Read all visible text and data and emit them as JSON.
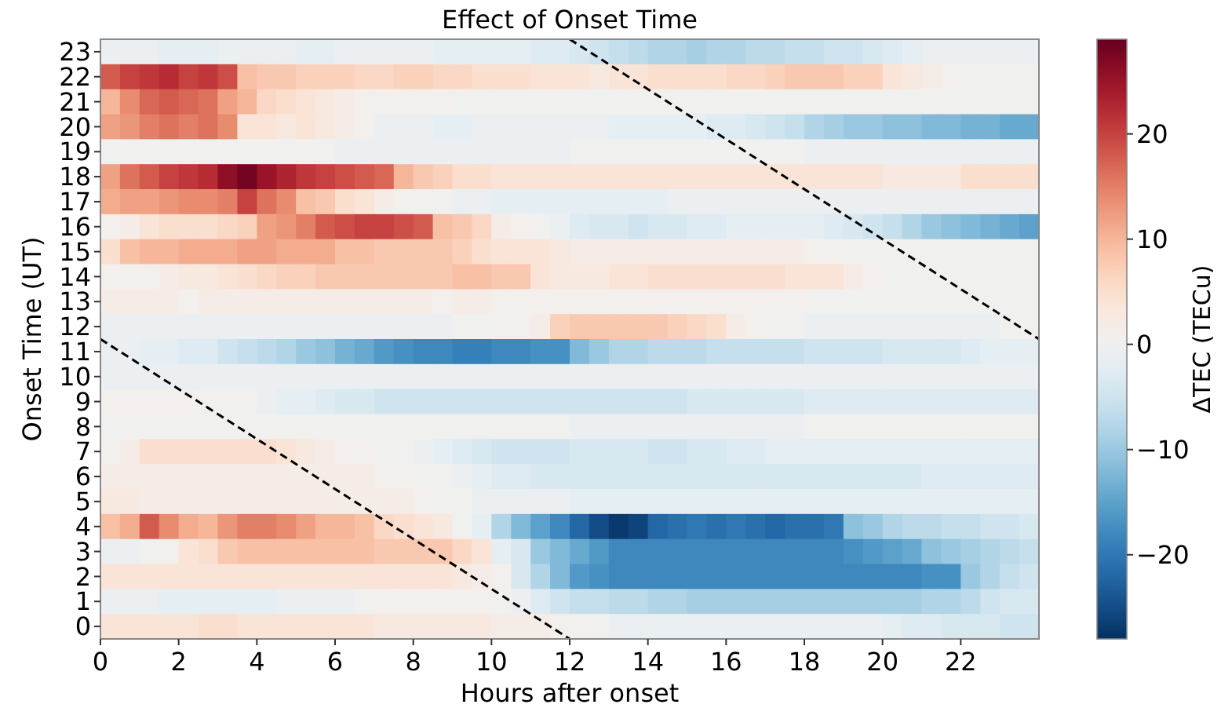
{
  "chart_data": {
    "type": "heatmap",
    "title": "Effect of Onset Time",
    "xlabel": "Hours after onset",
    "ylabel": "Onset Time (UT)",
    "clabel": "ΔTEC (TECu)",
    "xlim": [
      0,
      24
    ],
    "xticks": [
      0,
      2,
      4,
      6,
      8,
      10,
      12,
      14,
      16,
      18,
      20,
      22
    ],
    "ylim": [
      -0.5,
      23.5
    ],
    "yticks": [
      0,
      1,
      2,
      3,
      4,
      5,
      6,
      7,
      8,
      9,
      10,
      11,
      12,
      13,
      14,
      15,
      16,
      17,
      18,
      19,
      20,
      21,
      22,
      23
    ],
    "clim": [
      -28,
      29
    ],
    "cticks": [
      -20,
      -10,
      0,
      10,
      20
    ],
    "cells": [
      [
        -1,
        -1,
        -1,
        -2,
        -2,
        -2,
        -1,
        -1,
        -1,
        -1,
        -2,
        -2,
        -1,
        -1,
        -1,
        -1,
        -1,
        -2,
        -2,
        -2,
        -2,
        -2,
        -3,
        -3,
        -4,
        -5,
        -6,
        -7,
        -8,
        -8,
        -9,
        -8,
        -8,
        -7,
        -7,
        -6,
        -6,
        -5,
        -5,
        -4,
        -3,
        -2,
        -1,
        -1,
        -1,
        -1,
        -1,
        -1
      ],
      [
        18,
        20,
        21,
        22,
        20,
        21,
        19,
        9,
        8,
        8,
        7,
        7,
        7,
        6,
        6,
        7,
        7,
        6,
        6,
        5,
        5,
        5,
        4,
        4,
        4,
        3,
        4,
        4,
        5,
        5,
        5,
        5,
        6,
        6,
        7,
        8,
        8,
        8,
        7,
        7,
        4,
        3,
        2,
        1,
        0,
        0,
        0,
        0
      ],
      [
        10,
        14,
        17,
        18,
        17,
        16,
        12,
        10,
        6,
        5,
        4,
        3,
        2,
        1,
        1,
        1,
        1,
        1,
        0,
        0,
        0,
        0,
        0,
        0,
        0,
        0,
        0,
        0,
        0,
        0,
        0,
        0,
        0,
        0,
        0,
        0,
        0,
        0,
        0,
        0,
        0,
        0,
        0,
        0,
        0,
        0,
        0,
        0
      ],
      [
        12,
        13,
        15,
        16,
        15,
        16,
        14,
        4,
        4,
        3,
        4,
        3,
        2,
        1,
        -1,
        -1,
        -1,
        -2,
        -2,
        -1,
        -1,
        -1,
        -1,
        -1,
        -1,
        -1,
        -2,
        -2,
        -2,
        -2,
        -2,
        -3,
        -3,
        -4,
        -5,
        -6,
        -8,
        -9,
        -10,
        -10,
        -11,
        -11,
        -12,
        -12,
        -13,
        -13,
        -14,
        -14
      ],
      [
        0,
        0,
        0,
        0,
        0,
        0,
        0,
        0,
        0,
        0,
        0,
        0,
        -1,
        -1,
        -1,
        -1,
        -1,
        -1,
        -1,
        -1,
        -1,
        -1,
        -1,
        -1,
        0,
        0,
        0,
        0,
        0,
        0,
        0,
        0,
        0,
        0,
        0,
        0,
        -1,
        -1,
        -1,
        -1,
        -1,
        -1,
        -1,
        -1,
        -1,
        -1,
        -1,
        -1
      ],
      [
        12,
        16,
        18,
        20,
        21,
        22,
        26,
        28,
        25,
        23,
        21,
        20,
        19,
        18,
        17,
        10,
        8,
        7,
        5,
        5,
        4,
        4,
        4,
        4,
        4,
        4,
        4,
        4,
        4,
        4,
        4,
        4,
        4,
        4,
        4,
        4,
        4,
        4,
        4,
        4,
        3,
        3,
        3,
        3,
        5,
        5,
        5,
        5
      ],
      [
        11,
        12,
        12,
        13,
        14,
        14,
        15,
        20,
        16,
        14,
        9,
        8,
        5,
        4,
        2,
        1,
        1,
        0,
        -1,
        -1,
        -2,
        -2,
        -2,
        -2,
        -2,
        -2,
        -2,
        -2,
        -2,
        -1,
        -1,
        -1,
        -1,
        -1,
        -1,
        -1,
        -1,
        -1,
        -1,
        -1,
        -1,
        -1,
        -1,
        -1,
        -1,
        -1,
        -1,
        -1
      ],
      [
        1,
        2,
        4,
        5,
        5,
        5,
        6,
        7,
        12,
        13,
        15,
        18,
        19,
        20,
        20,
        19,
        18,
        9,
        8,
        6,
        2,
        1,
        0,
        -1,
        -3,
        -4,
        -4,
        -5,
        -4,
        -4,
        -3,
        -3,
        -2,
        -2,
        -2,
        -2,
        -2,
        -3,
        -4,
        -5,
        -6,
        -8,
        -10,
        -11,
        -12,
        -13,
        -14,
        -15
      ],
      [
        5,
        9,
        10,
        10,
        11,
        11,
        11,
        12,
        12,
        11,
        11,
        11,
        9,
        9,
        8,
        8,
        8,
        8,
        7,
        5,
        4,
        4,
        4,
        3,
        2,
        2,
        2,
        2,
        2,
        2,
        2,
        2,
        2,
        2,
        2,
        2,
        1,
        1,
        0,
        0,
        0,
        0,
        0,
        0,
        0,
        0,
        0,
        0
      ],
      [
        1,
        1,
        1,
        2,
        3,
        3,
        4,
        5,
        6,
        7,
        7,
        8,
        8,
        8,
        8,
        8,
        8,
        8,
        9,
        9,
        8,
        8,
        4,
        3,
        3,
        3,
        4,
        4,
        5,
        5,
        5,
        5,
        5,
        5,
        5,
        4,
        4,
        4,
        2,
        1,
        0,
        0,
        0,
        0,
        0,
        0,
        0,
        0
      ],
      [
        2,
        2,
        2,
        2,
        1,
        2,
        2,
        2,
        2,
        2,
        2,
        2,
        2,
        2,
        2,
        2,
        2,
        1,
        2,
        2,
        1,
        1,
        1,
        1,
        1,
        1,
        1,
        1,
        1,
        1,
        1,
        1,
        1,
        1,
        1,
        1,
        0,
        0,
        0,
        0,
        0,
        0,
        0,
        0,
        0,
        0,
        0,
        0
      ],
      [
        -1,
        -1,
        -1,
        -1,
        -1,
        -1,
        -1,
        -1,
        -1,
        -1,
        -1,
        -1,
        -1,
        -1,
        -1,
        -1,
        -1,
        -1,
        0,
        0,
        1,
        1,
        2,
        7,
        8,
        8,
        8,
        8,
        8,
        7,
        6,
        5,
        2,
        1,
        0,
        0,
        -1,
        -1,
        -1,
        -1,
        -1,
        -1,
        -1,
        -1,
        -1,
        -1,
        0,
        0
      ],
      [
        -1,
        -1,
        -2,
        -2,
        -3,
        -3,
        -5,
        -6,
        -7,
        -8,
        -10,
        -11,
        -13,
        -14,
        -16,
        -17,
        -18,
        -18,
        -19,
        -19,
        -18,
        -18,
        -17,
        -17,
        -12,
        -10,
        -8,
        -8,
        -7,
        -7,
        -7,
        -6,
        -6,
        -6,
        -6,
        -6,
        -5,
        -5,
        -5,
        -5,
        -4,
        -4,
        -4,
        -4,
        -3,
        -2,
        -2,
        -2
      ],
      [
        -1,
        -1,
        -1,
        -1,
        -1,
        -1,
        -1,
        -1,
        -1,
        -1,
        -1,
        -1,
        -1,
        -1,
        -1,
        -1,
        -1,
        -1,
        -1,
        -1,
        -1,
        -1,
        -1,
        -1,
        -1,
        -1,
        -1,
        -1,
        -1,
        -1,
        -1,
        -1,
        -1,
        -1,
        -1,
        -1,
        -1,
        -1,
        -1,
        -1,
        -1,
        -1,
        -1,
        -1,
        -1,
        -1,
        -1,
        -1
      ],
      [
        1,
        1,
        1,
        1,
        1,
        0,
        0,
        0,
        -1,
        -2,
        -2,
        -3,
        -4,
        -4,
        -5,
        -5,
        -5,
        -5,
        -5,
        -5,
        -5,
        -5,
        -5,
        -5,
        -5,
        -5,
        -5,
        -5,
        -5,
        -5,
        -4,
        -4,
        -4,
        -4,
        -4,
        -4,
        -3,
        -3,
        -3,
        -3,
        -3,
        -3,
        -3,
        -3,
        -3,
        -3,
        -3,
        -3
      ],
      [
        0,
        0,
        0,
        0,
        0,
        0,
        0,
        0,
        0,
        0,
        0,
        0,
        0,
        0,
        0,
        0,
        0,
        0,
        0,
        0,
        0,
        0,
        0,
        0,
        -1,
        -1,
        -1,
        -1,
        -1,
        -1,
        -1,
        -1,
        -1,
        -1,
        -1,
        -1,
        0,
        0,
        0,
        0,
        0,
        0,
        0,
        0,
        0,
        0,
        0,
        0
      ],
      [
        1,
        2,
        5,
        5,
        5,
        5,
        5,
        5,
        5,
        4,
        3,
        2,
        1,
        1,
        0,
        0,
        -1,
        -2,
        -3,
        -4,
        -5,
        -5,
        -5,
        -5,
        -4,
        -4,
        -4,
        -4,
        -5,
        -5,
        -4,
        -4,
        -3,
        -3,
        -2,
        -2,
        -2,
        -2,
        -2,
        -2,
        -2,
        -2,
        -2,
        -2,
        -2,
        -2,
        -2,
        -2
      ],
      [
        2,
        2,
        2,
        2,
        2,
        2,
        2,
        2,
        2,
        2,
        2,
        2,
        2,
        2,
        1,
        1,
        0,
        0,
        -1,
        -2,
        -3,
        -3,
        -4,
        -4,
        -4,
        -4,
        -4,
        -4,
        -4,
        -4,
        -4,
        -4,
        -4,
        -4,
        -4,
        -4,
        -4,
        -4,
        -4,
        -4,
        -4,
        -4,
        -3,
        -3,
        -3,
        -3,
        -3,
        -3
      ],
      [
        3,
        3,
        2,
        2,
        2,
        2,
        2,
        2,
        2,
        2,
        2,
        2,
        2,
        2,
        2,
        2,
        1,
        0,
        0,
        -1,
        -1,
        -1,
        -1,
        -1,
        -2,
        -2,
        -2,
        -2,
        -2,
        -2,
        -2,
        -2,
        -2,
        -2,
        -2,
        -2,
        -2,
        -2,
        -2,
        -2,
        -2,
        -2,
        -2,
        -2,
        -2,
        -2,
        -2,
        -2
      ],
      [
        9,
        11,
        18,
        14,
        11,
        10,
        13,
        15,
        15,
        14,
        12,
        10,
        10,
        9,
        6,
        5,
        4,
        3,
        0,
        -2,
        -8,
        -12,
        -15,
        -18,
        -22,
        -25,
        -27,
        -26,
        -22,
        -21,
        -20,
        -21,
        -20,
        -21,
        -22,
        -21,
        -21,
        -20,
        -11,
        -10,
        -8,
        -7,
        -7,
        -6,
        -6,
        -5,
        -5,
        -4
      ],
      [
        -1,
        -1,
        0,
        1,
        4,
        5,
        8,
        9,
        9,
        9,
        9,
        9,
        9,
        9,
        8,
        8,
        8,
        8,
        6,
        4,
        -2,
        -4,
        -10,
        -12,
        -14,
        -16,
        -18,
        -18,
        -18,
        -18,
        -18,
        -18,
        -18,
        -18,
        -18,
        -18,
        -18,
        -18,
        -17,
        -16,
        -15,
        -14,
        -11,
        -10,
        -9,
        -8,
        -7,
        -6
      ],
      [
        4,
        4,
        4,
        4,
        4,
        4,
        4,
        4,
        4,
        4,
        4,
        4,
        4,
        4,
        4,
        4,
        4,
        4,
        3,
        2,
        1,
        -4,
        -8,
        -12,
        -16,
        -17,
        -18,
        -18,
        -18,
        -18,
        -18,
        -18,
        -18,
        -18,
        -18,
        -18,
        -18,
        -18,
        -18,
        -18,
        -18,
        -18,
        -17,
        -17,
        -10,
        -8,
        -6,
        -5
      ],
      [
        -1,
        -1,
        -1,
        -2,
        -2,
        -2,
        -2,
        -2,
        -2,
        -1,
        -1,
        -1,
        -1,
        0,
        1,
        1,
        1,
        1,
        1,
        1,
        0,
        -1,
        -3,
        -5,
        -6,
        -6,
        -7,
        -7,
        -8,
        -8,
        -9,
        -9,
        -9,
        -9,
        -9,
        -9,
        -9,
        -9,
        -9,
        -9,
        -9,
        -9,
        -8,
        -8,
        -7,
        -5,
        -4,
        -4
      ],
      [
        4,
        4,
        4,
        4,
        4,
        5,
        5,
        4,
        4,
        4,
        4,
        4,
        4,
        4,
        3,
        3,
        3,
        3,
        3,
        3,
        2,
        2,
        2,
        1,
        1,
        0,
        -1,
        -1,
        -1,
        -1,
        -1,
        -1,
        -1,
        -1,
        -1,
        -1,
        -1,
        -1,
        -1,
        -1,
        -2,
        -3,
        -3,
        -4,
        -4,
        -4,
        -5,
        -5
      ]
    ],
    "series": [
      {
        "type": "line",
        "x": [
          0,
          12
        ],
        "values": [
          11.5,
          -0.5
        ],
        "color": "#000000",
        "line_style": "dashed"
      },
      {
        "type": "line",
        "x": [
          12,
          24
        ],
        "values": [
          23.5,
          11.5
        ],
        "color": "#000000",
        "line_style": "dashed"
      }
    ]
  }
}
